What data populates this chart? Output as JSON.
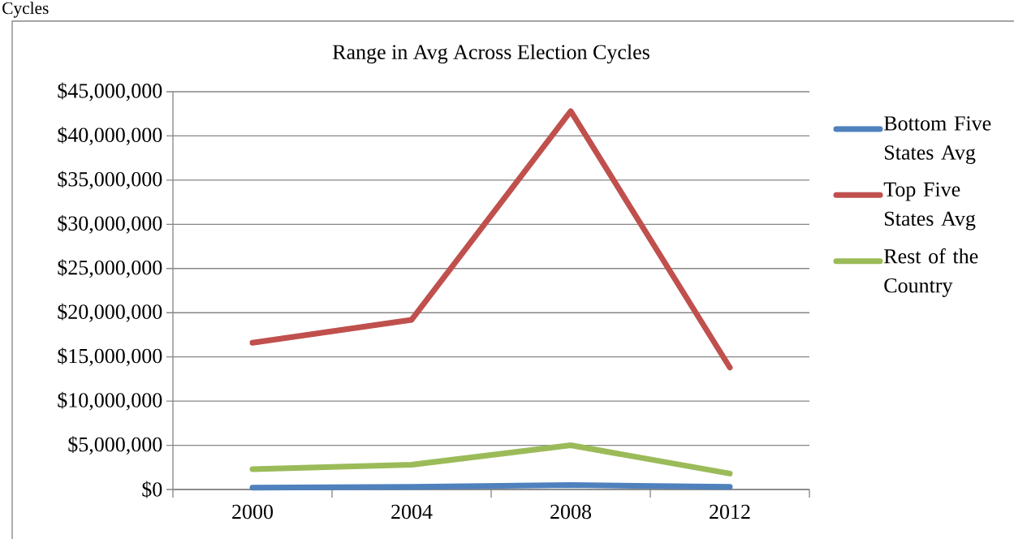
{
  "chart_data": {
    "type": "line",
    "title": "Range in Avg Across Election Cycles",
    "categories": [
      "2000",
      "2004",
      "2008",
      "2012"
    ],
    "series": [
      {
        "name": "Bottom Five States Avg",
        "color": "#4f81bd",
        "values": [
          200000,
          300000,
          500000,
          300000
        ]
      },
      {
        "name": "Top Five States Avg",
        "color": "#c0504d",
        "values": [
          16600000,
          19200000,
          42800000,
          13800000
        ]
      },
      {
        "name": "Rest of the Country",
        "color": "#9bbb59",
        "values": [
          2300000,
          2800000,
          5000000,
          1800000
        ]
      }
    ],
    "ylim": [
      0,
      45000000
    ],
    "yticks": [
      {
        "value": 0,
        "label": "$0"
      },
      {
        "value": 5000000,
        "label": "$5,000,000"
      },
      {
        "value": 10000000,
        "label": "$10,000,000"
      },
      {
        "value": 15000000,
        "label": "$15,000,000"
      },
      {
        "value": 20000000,
        "label": "$20,000,000"
      },
      {
        "value": 25000000,
        "label": "$25,000,000"
      },
      {
        "value": 30000000,
        "label": "$30,000,000"
      },
      {
        "value": 35000000,
        "label": "$35,000,000"
      },
      {
        "value": 40000000,
        "label": "$40,000,000"
      },
      {
        "value": 45000000,
        "label": "$45,000,000"
      }
    ],
    "grid": "y",
    "legend": "right",
    "marker": "none",
    "line_style": "solid",
    "annotations": [
      "Cycles"
    ]
  }
}
